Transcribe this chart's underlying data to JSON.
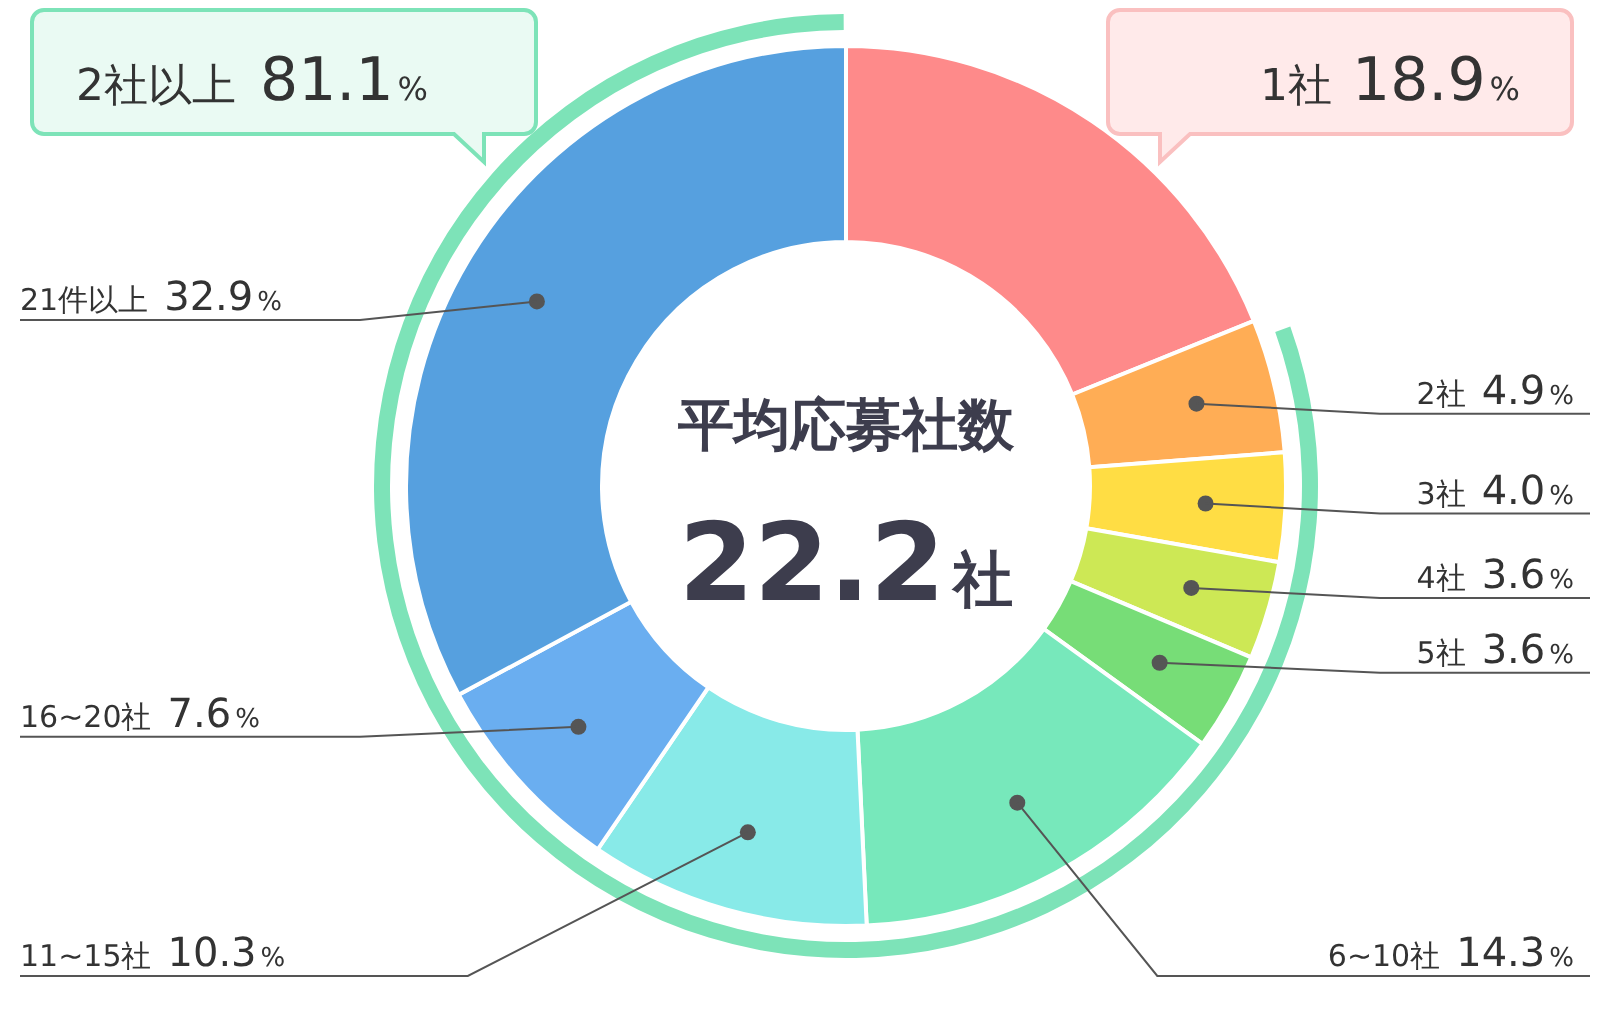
{
  "chart_data": {
    "type": "donut",
    "title": "平均応募社数",
    "categories": [
      "1社",
      "2社",
      "3社",
      "4社",
      "5社",
      "6~10社",
      "11~15社",
      "16~20社",
      "21件以上"
    ],
    "values": [
      18.9,
      4.9,
      4.0,
      3.6,
      3.6,
      14.3,
      10.3,
      7.6,
      32.9
    ],
    "value_labels": [
      "18.9%",
      "4.9%",
      "4.0%",
      "3.6%",
      "3.6%",
      "14.3%",
      "10.3%",
      "7.6%",
      "32.9%"
    ],
    "colors": [
      "#fe8a8a",
      "#ffad55",
      "#ffdd44",
      "#cde855",
      "#77dd77",
      "#77e8bb",
      "#88eae8",
      "#6aaef0",
      "#56a0df"
    ],
    "annotations": [
      "22.2社",
      "2社以上 81.1%"
    ]
  }
}
